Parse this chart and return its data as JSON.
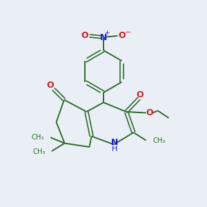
{
  "bg_color": "#eaeff5",
  "bond_color": "#2d6b2d",
  "n_color": "#1a1acc",
  "o_color": "#cc2020",
  "figsize": [
    3.0,
    3.0
  ],
  "dpi": 100,
  "xlim": [
    0,
    10
  ],
  "ylim": [
    0,
    10
  ]
}
